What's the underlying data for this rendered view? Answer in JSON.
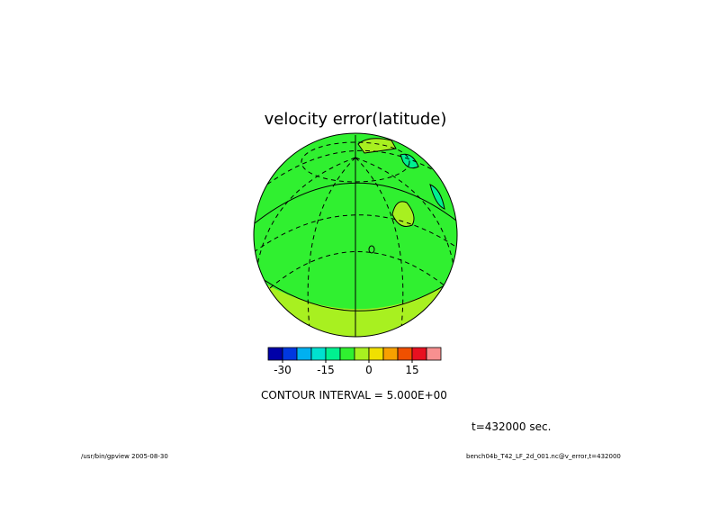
{
  "figure": {
    "title": "velocity error(latitude)",
    "colorbar": {
      "colors": [
        "#0000a8",
        "#0038e0",
        "#00b0f0",
        "#00e0d0",
        "#00f090",
        "#30f030",
        "#a8f020",
        "#f0e000",
        "#f8a000",
        "#f05000",
        "#e81020",
        "#f89090"
      ],
      "lim": [
        -35,
        25
      ],
      "ticks": [
        -30,
        -15,
        0,
        15
      ]
    },
    "contour_interval": "CONTOUR INTERVAL = 5.000E+00",
    "time_label": "t=432000 sec.",
    "footer_left": "/usr/bin/gpview  2005-08-30",
    "footer_right": "bench04b_T42_LF_2d_001.nc@v_error,t=432000"
  }
}
